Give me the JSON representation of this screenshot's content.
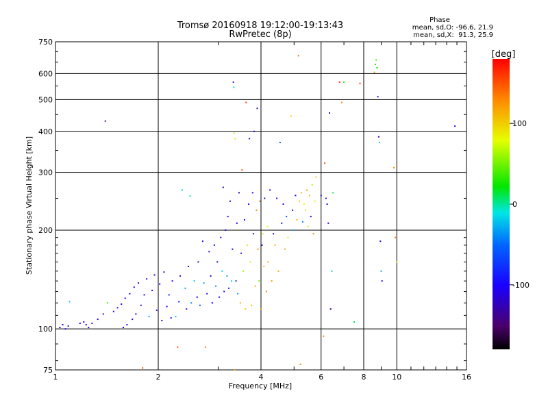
{
  "chart_data": {
    "type": "scatter",
    "title": "Tromsø 20160918 19:12:00-19:13:43",
    "subtitle": "RwPretec (8p)",
    "xlabel": "Frequency [MHz]",
    "ylabel": "Stationary phase Virtual Height [km]",
    "x_scale": "log",
    "y_scale": "log",
    "xlim": [
      1,
      16
    ],
    "ylim": [
      75,
      750
    ],
    "x_ticks": [
      "1",
      "2",
      "4",
      "6",
      "8",
      "10",
      "16"
    ],
    "x_tick_values": [
      1,
      2,
      4,
      6,
      8,
      10,
      16
    ],
    "y_ticks": [
      "75",
      "100",
      "200",
      "300",
      "400",
      "500",
      "600",
      "750"
    ],
    "y_tick_values": [
      75,
      100,
      200,
      300,
      400,
      500,
      600,
      750
    ],
    "grid": true,
    "phase_box": {
      "heading": "Phase",
      "line1": "mean, sd,O: -96.6, 21.9",
      "line2": "mean, sd,X:  91.3, 25.9"
    },
    "colorbar": {
      "label": "[deg]",
      "min": -180,
      "max": 180,
      "ticks": [
        "100",
        "0",
        "-100"
      ],
      "tick_values": [
        100,
        0,
        -100
      ],
      "colormap": "rainbow"
    },
    "series_note": "",
    "points": [
      [
        1.03,
        101,
        -110
      ],
      [
        1.05,
        103,
        -115
      ],
      [
        1.07,
        100,
        -105
      ],
      [
        1.09,
        102,
        -120
      ],
      [
        1.1,
        121,
        -20
      ],
      [
        1.18,
        104,
        -110
      ],
      [
        1.21,
        105,
        -112
      ],
      [
        1.23,
        103,
        -108
      ],
      [
        1.25,
        101,
        -118
      ],
      [
        1.28,
        104,
        -95
      ],
      [
        1.33,
        107,
        -100
      ],
      [
        1.38,
        111,
        -105
      ],
      [
        1.4,
        430,
        -150
      ],
      [
        1.42,
        120,
        40
      ],
      [
        1.48,
        113,
        -100
      ],
      [
        1.52,
        116,
        -110
      ],
      [
        1.56,
        119,
        -120
      ],
      [
        1.58,
        101,
        -105
      ],
      [
        1.6,
        124,
        -100
      ],
      [
        1.62,
        103,
        -95
      ],
      [
        1.65,
        128,
        -108
      ],
      [
        1.68,
        107,
        -112
      ],
      [
        1.7,
        134,
        -100
      ],
      [
        1.72,
        111,
        -118
      ],
      [
        1.75,
        138,
        -125
      ],
      [
        1.78,
        118,
        -90
      ],
      [
        1.8,
        76,
        150
      ],
      [
        1.82,
        127,
        -100
      ],
      [
        1.85,
        142,
        -110
      ],
      [
        1.88,
        109,
        -30
      ],
      [
        1.92,
        131,
        -100
      ],
      [
        1.95,
        146,
        -115
      ],
      [
        1.98,
        114,
        -90
      ],
      [
        2.02,
        137,
        -105
      ],
      [
        2.05,
        106,
        -120
      ],
      [
        2.08,
        149,
        -100
      ],
      [
        2.12,
        117,
        -95
      ],
      [
        2.15,
        127,
        -85
      ],
      [
        2.18,
        108,
        -110
      ],
      [
        2.2,
        140,
        -100
      ],
      [
        2.25,
        109,
        -20
      ],
      [
        2.28,
        88,
        150
      ],
      [
        2.3,
        121,
        -105
      ],
      [
        2.32,
        145,
        -95
      ],
      [
        2.35,
        265,
        -20
      ],
      [
        2.4,
        133,
        -30
      ],
      [
        2.42,
        115,
        -90
      ],
      [
        2.45,
        155,
        -100
      ],
      [
        2.48,
        254,
        0
      ],
      [
        2.5,
        120,
        -40
      ],
      [
        2.55,
        140,
        -20
      ],
      [
        2.6,
        125,
        -100
      ],
      [
        2.62,
        160,
        -110
      ],
      [
        2.65,
        118,
        -60
      ],
      [
        2.7,
        185,
        -110
      ],
      [
        2.72,
        138,
        -30
      ],
      [
        2.75,
        88,
        140
      ],
      [
        2.78,
        128,
        -90
      ],
      [
        2.82,
        172,
        -100
      ],
      [
        2.85,
        145,
        -110
      ],
      [
        2.88,
        120,
        -100
      ],
      [
        2.92,
        180,
        -115
      ],
      [
        2.95,
        135,
        -40
      ],
      [
        2.98,
        160,
        -120
      ],
      [
        3.02,
        125,
        -95
      ],
      [
        3.05,
        190,
        -100
      ],
      [
        3.08,
        150,
        -20
      ],
      [
        3.1,
        270,
        -120
      ],
      [
        3.12,
        130,
        -95
      ],
      [
        3.15,
        200,
        -110
      ],
      [
        3.18,
        145,
        -30
      ],
      [
        3.2,
        220,
        -100
      ],
      [
        3.22,
        133,
        -90
      ],
      [
        3.25,
        245,
        -115
      ],
      [
        3.28,
        140,
        -10
      ],
      [
        3.3,
        175,
        -100
      ],
      [
        3.32,
        565,
        -100
      ],
      [
        3.33,
        545,
        0
      ],
      [
        3.34,
        395,
        90
      ],
      [
        3.35,
        75,
        120
      ],
      [
        3.36,
        380,
        70
      ],
      [
        3.38,
        140,
        -80
      ],
      [
        3.4,
        210,
        -110
      ],
      [
        3.42,
        128,
        -30
      ],
      [
        3.45,
        260,
        -120
      ],
      [
        3.48,
        120,
        110
      ],
      [
        3.5,
        170,
        -100
      ],
      [
        3.52,
        305,
        150
      ],
      [
        3.55,
        150,
        60
      ],
      [
        3.58,
        215,
        -110
      ],
      [
        3.6,
        115,
        100
      ],
      [
        3.62,
        490,
        160
      ],
      [
        3.65,
        180,
        90
      ],
      [
        3.68,
        240,
        -100
      ],
      [
        3.7,
        380,
        -110
      ],
      [
        3.72,
        160,
        70
      ],
      [
        3.75,
        118,
        110
      ],
      [
        3.78,
        260,
        -100
      ],
      [
        3.8,
        195,
        -110
      ],
      [
        3.82,
        400,
        -115
      ],
      [
        3.85,
        135,
        110
      ],
      [
        3.88,
        230,
        130
      ],
      [
        3.9,
        470,
        -115
      ],
      [
        3.92,
        175,
        120
      ],
      [
        3.95,
        140,
        50
      ],
      [
        3.97,
        245,
        140
      ],
      [
        4.0,
        115,
        120
      ],
      [
        4.03,
        180,
        -100
      ],
      [
        4.05,
        195,
        90
      ],
      [
        4.08,
        155,
        110
      ],
      [
        4.1,
        250,
        -110
      ],
      [
        4.15,
        130,
        130
      ],
      [
        4.18,
        205,
        80
      ],
      [
        4.2,
        160,
        120
      ],
      [
        4.25,
        265,
        -100
      ],
      [
        4.3,
        140,
        125
      ],
      [
        4.35,
        195,
        -110
      ],
      [
        4.4,
        180,
        110
      ],
      [
        4.45,
        250,
        -105
      ],
      [
        4.5,
        150,
        120
      ],
      [
        4.55,
        370,
        -60
      ],
      [
        4.6,
        210,
        -100
      ],
      [
        4.65,
        240,
        -110
      ],
      [
        4.7,
        175,
        115
      ],
      [
        4.75,
        220,
        -60
      ],
      [
        4.8,
        190,
        90
      ],
      [
        4.9,
        445,
        100
      ],
      [
        4.95,
        230,
        -120
      ],
      [
        5.0,
        200,
        -30
      ],
      [
        5.05,
        255,
        -110
      ],
      [
        5.1,
        215,
        110
      ],
      [
        5.15,
        680,
        140
      ],
      [
        5.18,
        245,
        100
      ],
      [
        5.22,
        78,
        130
      ],
      [
        5.25,
        260,
        110
      ],
      [
        5.3,
        212,
        -40
      ],
      [
        5.35,
        240,
        80
      ],
      [
        5.4,
        230,
        100
      ],
      [
        5.45,
        265,
        120
      ],
      [
        5.5,
        205,
        90
      ],
      [
        5.55,
        255,
        110
      ],
      [
        5.6,
        220,
        -110
      ],
      [
        5.65,
        275,
        60
      ],
      [
        5.7,
        195,
        130
      ],
      [
        5.75,
        245,
        90
      ],
      [
        5.8,
        290,
        100
      ],
      [
        6.0,
        255,
        -110
      ],
      [
        6.1,
        95,
        130
      ],
      [
        6.15,
        320,
        150
      ],
      [
        6.2,
        250,
        -120
      ],
      [
        6.25,
        240,
        -110
      ],
      [
        6.3,
        210,
        -100
      ],
      [
        6.35,
        455,
        -110
      ],
      [
        6.4,
        115,
        -150
      ],
      [
        6.45,
        150,
        0
      ],
      [
        6.5,
        260,
        10
      ],
      [
        6.8,
        565,
        170
      ],
      [
        6.9,
        490,
        130
      ],
      [
        7.0,
        565,
        30
      ],
      [
        7.5,
        105,
        10
      ],
      [
        7.8,
        560,
        160
      ],
      [
        8.6,
        605,
        120
      ],
      [
        8.65,
        640,
        30
      ],
      [
        8.7,
        660,
        40
      ],
      [
        8.75,
        625,
        20
      ],
      [
        8.8,
        510,
        -120
      ],
      [
        8.85,
        385,
        -120
      ],
      [
        8.9,
        370,
        -20
      ],
      [
        8.95,
        185,
        -110
      ],
      [
        9.0,
        150,
        -30
      ],
      [
        9.05,
        140,
        -110
      ],
      [
        9.8,
        310,
        130
      ],
      [
        9.9,
        190,
        140
      ],
      [
        10.0,
        160,
        90
      ],
      [
        14.8,
        415,
        -110
      ]
    ]
  }
}
